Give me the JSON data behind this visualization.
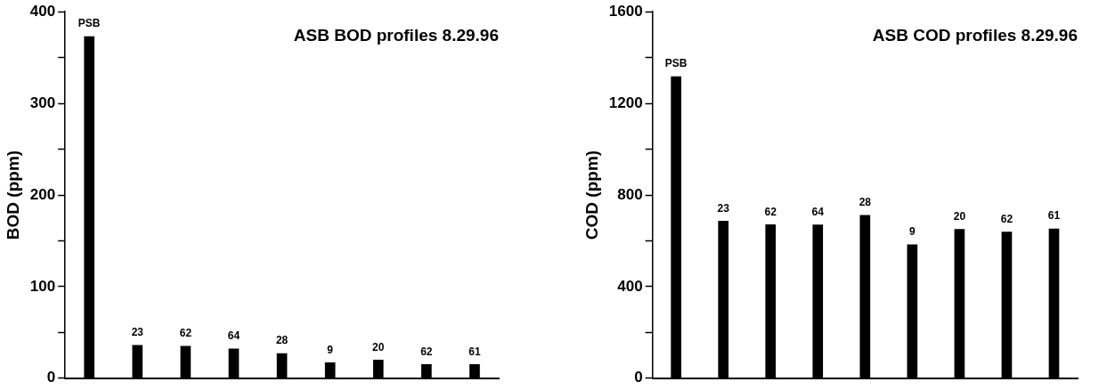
{
  "chart_data": [
    {
      "type": "bar",
      "title": "ASB BOD profiles 8.29.96",
      "ylabel": "BOD (ppm)",
      "categories": [
        "PSB",
        "23",
        "62",
        "64",
        "28",
        "9",
        "20",
        "62",
        "61"
      ],
      "values": [
        373,
        36,
        35,
        32,
        27,
        17,
        20,
        15,
        15
      ],
      "color": "#000000",
      "ylim": [
        0,
        400
      ],
      "yticks": [
        0,
        {
          "value": 50,
          "label": null
        },
        100,
        {
          "value": 150,
          "label": null
        },
        200,
        {
          "value": 250,
          "label": null
        },
        300,
        {
          "value": 350,
          "label": null
        },
        400
      ],
      "grid": false
    },
    {
      "type": "bar",
      "title": "ASB COD profiles 8.29.96",
      "ylabel": "COD (ppm)",
      "categories": [
        "PSB",
        "23",
        "62",
        "64",
        "28",
        "9",
        "20",
        "62",
        "61"
      ],
      "values": [
        1317,
        686,
        670,
        669,
        711,
        583,
        650,
        638,
        652
      ],
      "color": "#000000",
      "ylim": [
        0,
        1600
      ],
      "yticks": [
        0,
        {
          "value": 200,
          "label": null
        },
        400,
        {
          "value": 600,
          "label": null
        },
        800,
        {
          "value": 1000,
          "label": null
        },
        1200,
        {
          "value": 1400,
          "label": null
        },
        1600
      ],
      "grid": false
    }
  ]
}
